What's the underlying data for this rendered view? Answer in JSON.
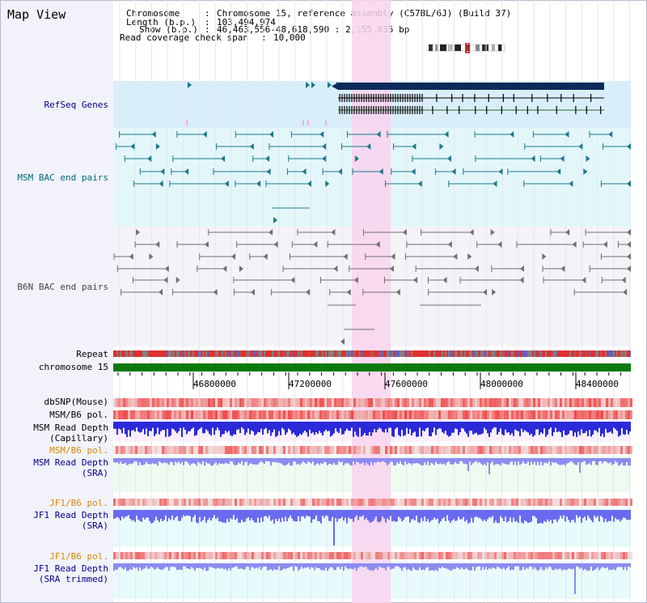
{
  "title": "Map View",
  "info": {
    "chromosome_key": "Chromosome",
    "chromosome_val": "Chromosome 15, reference assembly (C57BL/6J) (Build 37)",
    "length_key": "Length (b.p.)",
    "length_val": "103,494,974",
    "show_key": "Show (b.p.)",
    "show_val": "46,463,556-48,618,590 : 2,155,035 bp",
    "span_key": "Read coverage check span",
    "span_val": "10,000"
  },
  "tracks": {
    "refseq": "RefSeq Genes",
    "msm_bac": "MSM BAC end pairs",
    "b6n_bac": "B6N BAC end pairs",
    "repeat": "Repeat",
    "chromosome": "chromosome 15",
    "dbsnp": "dbSNP(Mouse)",
    "msm_b6_pol_1": "MSM/B6 pol.",
    "msm_depth_cap_1": "MSM Read Depth",
    "msm_depth_cap_2": "(Capillary)",
    "msm_b6_pol_2": "MSM/B6 pol.",
    "msm_depth_sra_1": "MSM Read Depth",
    "msm_depth_sra_2": "(SRA)",
    "jf1_b6_pol_1": "JF1/B6 pol.",
    "jf1_depth_sra_1": "JF1 Read Depth",
    "jf1_depth_sra_2": "(SRA)",
    "jf1_b6_pol_2": "JF1/B6 pol.",
    "jf1_depth_trim_1": "JF1 Read Depth",
    "jf1_depth_trim_2": "(SRA trimmed)"
  },
  "axis": {
    "ticks": [
      "46800000",
      "47200000",
      "47600000",
      "48000000",
      "48400000"
    ]
  },
  "colors": {
    "highlight": "#f9d3ef",
    "refseq_bg": "#d8eefa",
    "msm_bg": "#e3f7fb",
    "b6n_bg": "#f3f3f8",
    "chromosome_bar": "#0b7a0b",
    "msm_line": "#1b7a8a",
    "b6n_line": "#707070",
    "gene_block": "#0a2a5a",
    "depth_blue": "#2a2ad8",
    "depth_light": "#8c8cf0",
    "snp_red": "#f04040"
  }
}
